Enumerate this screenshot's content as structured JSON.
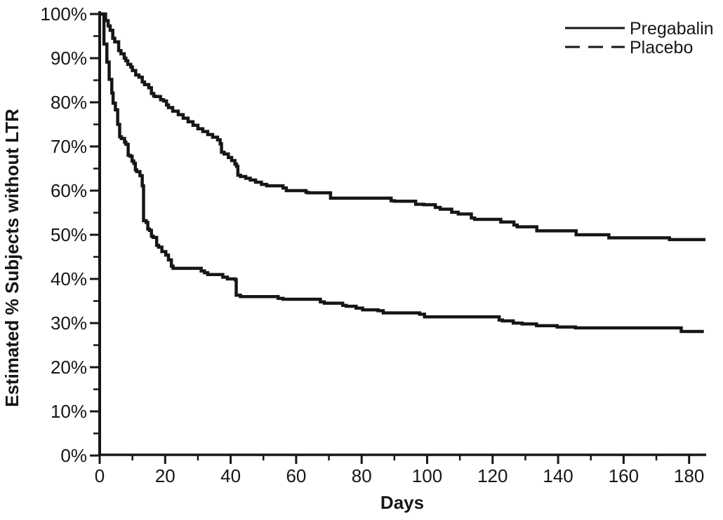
{
  "figure": {
    "background_color": "#ffffff",
    "line_color": "#161616"
  },
  "legend": {
    "position": "top-right",
    "items": [
      {
        "label": "Pregabalin",
        "line_style": "solid"
      },
      {
        "label": "Placebo",
        "line_style": "dashed"
      }
    ]
  },
  "chart_data": {
    "type": "line",
    "subtype": "kaplan_meier_step",
    "title": "",
    "xlabel": "Days",
    "ylabel": "Estimated % Subjects without LTR",
    "xlim": [
      0,
      185
    ],
    "ylim": [
      0,
      100
    ],
    "grid": false,
    "x_tick_major_interval": 20,
    "x_tick_minor_interval": 10,
    "x_tick_labels": [
      "0",
      "20",
      "40",
      "60",
      "80",
      "100",
      "120",
      "140",
      "160",
      "180"
    ],
    "y_tick_major_interval": 10,
    "y_tick_minor_interval": 5,
    "y_tick_labels": [
      "0%",
      "10%",
      "20%",
      "30%",
      "40%",
      "50%",
      "60%",
      "70%",
      "80%",
      "90%",
      "100%"
    ],
    "legend_position": "top-right",
    "series": [
      {
        "name": "Pregabalin",
        "legend_line_style": "solid",
        "plot_line_style": "solid",
        "color": "#161616",
        "points": [
          [
            0,
            100
          ],
          [
            1.8,
            98.5
          ],
          [
            2.6,
            97.3
          ],
          [
            3.2,
            96.3
          ],
          [
            4,
            94.5
          ],
          [
            4.6,
            93.7
          ],
          [
            5.8,
            91.7
          ],
          [
            6.5,
            91
          ],
          [
            7.5,
            90
          ],
          [
            8,
            89.4
          ],
          [
            8.6,
            88.6
          ],
          [
            9.5,
            88
          ],
          [
            10,
            87.2
          ],
          [
            11,
            86.2
          ],
          [
            12,
            85.7
          ],
          [
            13,
            84.6
          ],
          [
            13.7,
            84
          ],
          [
            15,
            83.3
          ],
          [
            15.8,
            82
          ],
          [
            16.5,
            81.4
          ],
          [
            17,
            81.3
          ],
          [
            18.6,
            80.6
          ],
          [
            19.5,
            80.3
          ],
          [
            20.4,
            79.4
          ],
          [
            21,
            78.8
          ],
          [
            22.3,
            78
          ],
          [
            24,
            77.2
          ],
          [
            25.5,
            76.4
          ],
          [
            27,
            75.6
          ],
          [
            28.5,
            74.8
          ],
          [
            30,
            74
          ],
          [
            31.5,
            73.4
          ],
          [
            33,
            72.7
          ],
          [
            34.5,
            72.1
          ],
          [
            36,
            71.5
          ],
          [
            36.8,
            70.6
          ],
          [
            37.2,
            68.7
          ],
          [
            38,
            68.3
          ],
          [
            39.3,
            67.5
          ],
          [
            40.3,
            66.8
          ],
          [
            41.3,
            66
          ],
          [
            41.8,
            65.5
          ],
          [
            42.2,
            63.5
          ],
          [
            43,
            63.2
          ],
          [
            44.6,
            62.8
          ],
          [
            46,
            62.4
          ],
          [
            47.6,
            61.9
          ],
          [
            49.4,
            61.4
          ],
          [
            51,
            61.1
          ],
          [
            56,
            60.6
          ],
          [
            57,
            60
          ],
          [
            63,
            59.6
          ],
          [
            63.7,
            59.5
          ],
          [
            70.5,
            58.3
          ],
          [
            89,
            57.7
          ],
          [
            90,
            57.6
          ],
          [
            96.5,
            56.9
          ],
          [
            99,
            56.8
          ],
          [
            102.5,
            56.2
          ],
          [
            104,
            55.8
          ],
          [
            107.5,
            55.1
          ],
          [
            109.5,
            54.7
          ],
          [
            113.5,
            53.8
          ],
          [
            114.5,
            53.5
          ],
          [
            122.5,
            52.9
          ],
          [
            126.5,
            52.2
          ],
          [
            127.5,
            51.8
          ],
          [
            133.5,
            50.9
          ],
          [
            145.5,
            50
          ],
          [
            155.5,
            49.3
          ],
          [
            174,
            48.9
          ],
          [
            185,
            48.9
          ]
        ]
      },
      {
        "name": "Placebo",
        "legend_line_style": "dashed",
        "plot_line_style": "solid",
        "color": "#161616",
        "points": [
          [
            0,
            100
          ],
          [
            1.3,
            93.2
          ],
          [
            2.2,
            89.1
          ],
          [
            2.9,
            85.2
          ],
          [
            3.7,
            82.1
          ],
          [
            4.1,
            79.8
          ],
          [
            4.8,
            78.3
          ],
          [
            5.5,
            75
          ],
          [
            6.1,
            72.2
          ],
          [
            6.6,
            71.8
          ],
          [
            7.6,
            71
          ],
          [
            8,
            70.5
          ],
          [
            8.7,
            68
          ],
          [
            9.3,
            67.8
          ],
          [
            9.9,
            66.7
          ],
          [
            10.4,
            66.2
          ],
          [
            10.9,
            64.7
          ],
          [
            11.3,
            64.3
          ],
          [
            12.3,
            63.4
          ],
          [
            13,
            61.1
          ],
          [
            13.4,
            53.2
          ],
          [
            14.2,
            52.8
          ],
          [
            14.7,
            51.3
          ],
          [
            15.2,
            51
          ],
          [
            15.8,
            49.7
          ],
          [
            16.3,
            49.4
          ],
          [
            17.4,
            47.6
          ],
          [
            18,
            47.2
          ],
          [
            19,
            46.2
          ],
          [
            20.2,
            45.4
          ],
          [
            21,
            44.3
          ],
          [
            21.9,
            42.9
          ],
          [
            22.4,
            42.4
          ],
          [
            31,
            41.8
          ],
          [
            32,
            41.4
          ],
          [
            33,
            41
          ],
          [
            37.6,
            40.4
          ],
          [
            39,
            40
          ],
          [
            41.4,
            39.8
          ],
          [
            41.7,
            36.3
          ],
          [
            43,
            36
          ],
          [
            54.5,
            35.6
          ],
          [
            56,
            35.4
          ],
          [
            67.4,
            34.8
          ],
          [
            68.6,
            34.5
          ],
          [
            74.2,
            34
          ],
          [
            75.3,
            33.8
          ],
          [
            78.3,
            33.4
          ],
          [
            80.3,
            33
          ],
          [
            85,
            32.8
          ],
          [
            86.6,
            32.3
          ],
          [
            97.7,
            32
          ],
          [
            99.2,
            31.4
          ],
          [
            122,
            30.7
          ],
          [
            123,
            30.5
          ],
          [
            126.3,
            30
          ],
          [
            129,
            29.8
          ],
          [
            133.4,
            29.4
          ],
          [
            139.7,
            29.1
          ],
          [
            145.3,
            28.9
          ],
          [
            177.6,
            28.1
          ],
          [
            184.5,
            28.1
          ]
        ]
      }
    ]
  }
}
